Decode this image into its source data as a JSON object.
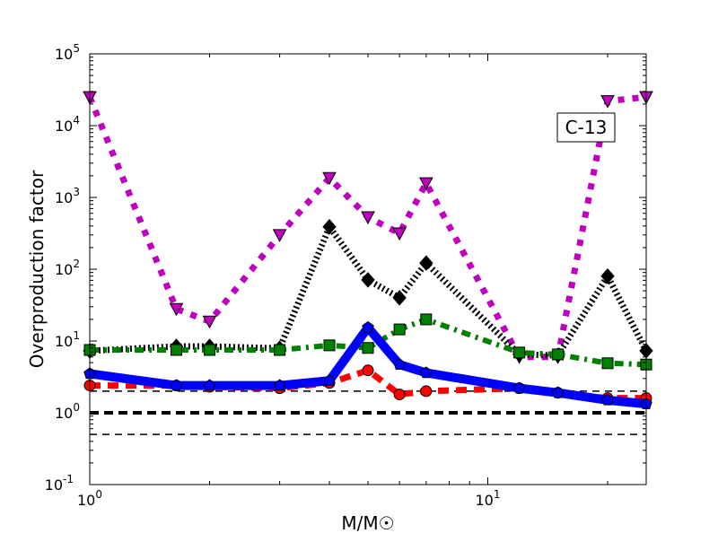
{
  "chart_data": {
    "type": "line",
    "title": "",
    "xlabel": "M/M☉",
    "ylabel": "Overproduction factor",
    "xscale": "log",
    "yscale": "log",
    "xlim": [
      1,
      25
    ],
    "ylim": [
      0.1,
      100000
    ],
    "xticks": [
      {
        "v": 1,
        "label": "10",
        "exp": "0"
      },
      {
        "v": 10,
        "label": "10",
        "exp": "1"
      }
    ],
    "yticks": [
      {
        "v": 0.1,
        "label": "10",
        "exp": "-1"
      },
      {
        "v": 1,
        "label": "10",
        "exp": "0"
      },
      {
        "v": 10,
        "label": "10",
        "exp": "1"
      },
      {
        "v": 100,
        "label": "10",
        "exp": "2"
      },
      {
        "v": 1000,
        "label": "10",
        "exp": "3"
      },
      {
        "v": 10000,
        "label": "10",
        "exp": "4"
      },
      {
        "v": 100000,
        "label": "10",
        "exp": "5"
      }
    ],
    "annotation": "C-13",
    "x": [
      1,
      1.65,
      2,
      3,
      4,
      5,
      6,
      7,
      12,
      15,
      20,
      25
    ],
    "series": [
      {
        "name": "magenta-triangles",
        "color": "#bf00bf",
        "marker": "triangle-down",
        "style": "dotted",
        "width": 7,
        "values": [
          25000,
          28,
          18.7,
          300,
          1870,
          530,
          316,
          1580,
          6,
          6,
          22000,
          25000
        ]
      },
      {
        "name": "black-diamonds",
        "color": "#000000",
        "marker": "diamond",
        "style": "hatch",
        "width": 7,
        "values": [
          7.3,
          8.4,
          8.4,
          7.9,
          390,
          71,
          40,
          122,
          6.5,
          6.3,
          80,
          7.3
        ]
      },
      {
        "name": "green-squares",
        "color": "#008000",
        "marker": "square",
        "style": "dashdot",
        "width": 6,
        "values": [
          7.5,
          7.5,
          7.5,
          7.5,
          8.7,
          8,
          14.5,
          20,
          6.9,
          6.5,
          4.9,
          4.7
        ]
      },
      {
        "name": "red-circles",
        "color": "#ff0000",
        "marker": "circle",
        "style": "dashed",
        "width": 7,
        "values": [
          2.4,
          2.4,
          2.3,
          2.2,
          2.6,
          3.9,
          1.8,
          2.0,
          2.2,
          1.9,
          1.6,
          1.6
        ]
      },
      {
        "name": "blue-pentagons",
        "color": "#0000ff",
        "marker": "pentagon",
        "style": "solid",
        "width": 10,
        "values": [
          3.5,
          2.4,
          2.4,
          2.4,
          2.8,
          15.4,
          4.7,
          3.6,
          2.2,
          1.9,
          1.5,
          1.33
        ]
      }
    ],
    "hlines": [
      {
        "y": 2,
        "width": 1.5,
        "dash": "8 6"
      },
      {
        "y": 1,
        "width": 4,
        "dash": "10 6"
      },
      {
        "y": 0.5,
        "width": 1.5,
        "dash": "8 6"
      }
    ],
    "grid": false
  }
}
